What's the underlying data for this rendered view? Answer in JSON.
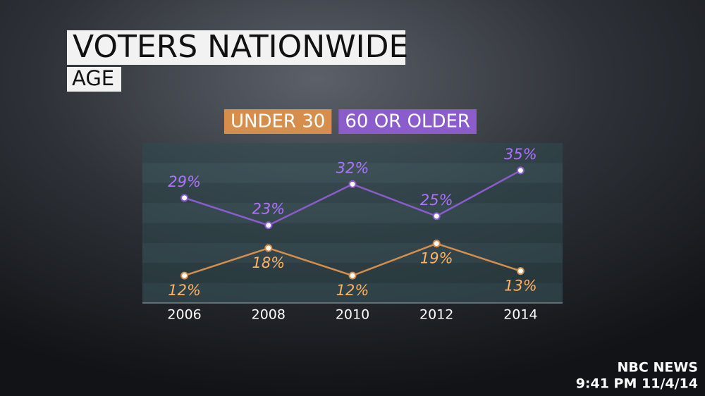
{
  "chart_data": {
    "type": "line",
    "title": "VOTERS NATIONWIDE",
    "subtitle": "AGE",
    "categories": [
      "2006",
      "2008",
      "2010",
      "2012",
      "2014"
    ],
    "series": [
      {
        "name": "UNDER 30",
        "color": "#d68e4c",
        "values": [
          12,
          18,
          12,
          19,
          13
        ],
        "value_labels": [
          "12%",
          "18%",
          "12%",
          "19%",
          "13%"
        ]
      },
      {
        "name": "60 OR OLDER",
        "color": "#8a5ccc",
        "values": [
          29,
          23,
          32,
          25,
          35
        ],
        "value_labels": [
          "29%",
          "23%",
          "32%",
          "25%",
          "35%"
        ]
      }
    ],
    "ylim": [
      6,
      41
    ],
    "annotations": [
      "NBC NEWS",
      "9:41 PM 11/4/14"
    ]
  }
}
